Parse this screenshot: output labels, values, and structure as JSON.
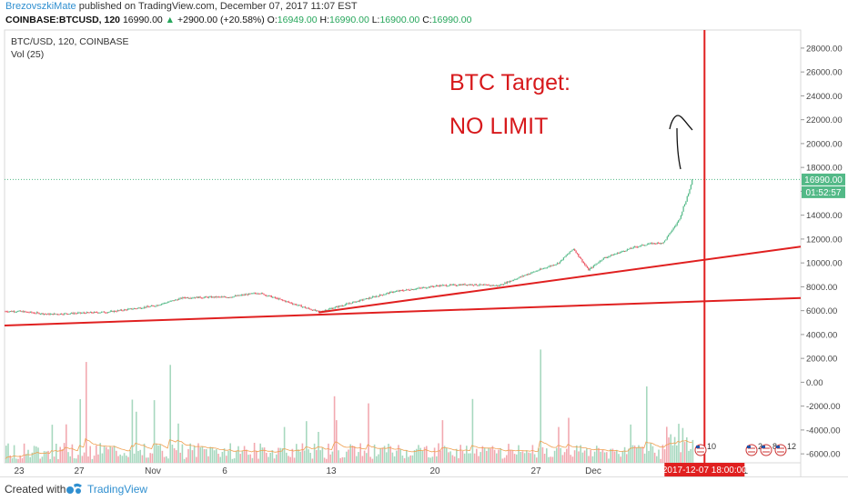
{
  "header": {
    "author": "BrezovszkiMate",
    "published": "published on TradingView.com, December 07, 2017 11:07 EST",
    "symbol": "COINBASE:BTCUSD, 120",
    "last": "16990.00",
    "change": "+2900.00 (+20.58%)",
    "o_label": "O:",
    "o": "16949.00",
    "h_label": "H:",
    "h": "16990.00",
    "l_label": "L:",
    "l": "16900.00",
    "c_label": "C:",
    "c": "16990.00"
  },
  "chart_data": {
    "type": "candlestick",
    "legend_symbol": "BTC/USD, 120, COINBASE",
    "legend_volume": "Vol (25)",
    "y_ticks": [
      28000,
      26000,
      24000,
      22000,
      20000,
      18000,
      16000,
      14000,
      12000,
      10000,
      8000,
      6000,
      4000,
      2000,
      0,
      -2000,
      -4000,
      -6000
    ],
    "y_tick_labels": [
      "28000.00",
      "26000.00",
      "24000.00",
      "22000.00",
      "20000.00",
      "18000.00",
      "16000.00",
      "14000.00",
      "12000.00",
      "10000.00",
      "8000.00",
      "6000.00",
      "4000.00",
      "2000.00",
      "0.00",
      "-2000.00",
      "-4000.00",
      "-6000.00"
    ],
    "x_tick_labels": [
      "23",
      "27",
      "Nov",
      "6",
      "13",
      "20",
      "27",
      "Dec",
      "11"
    ],
    "price_path": [
      [
        "2017-10-23",
        5950
      ],
      [
        "2017-10-25",
        5700
      ],
      [
        "2017-10-27",
        5800
      ],
      [
        "2017-10-29",
        5900
      ],
      [
        "2017-11-01",
        6400
      ],
      [
        "2017-11-03",
        7100
      ],
      [
        "2017-11-06",
        7150
      ],
      [
        "2017-11-08",
        7500
      ],
      [
        "2017-11-10",
        6700
      ],
      [
        "2017-11-12",
        5900
      ],
      [
        "2017-11-14",
        6600
      ],
      [
        "2017-11-17",
        7600
      ],
      [
        "2017-11-20",
        8100
      ],
      [
        "2017-11-22",
        8200
      ],
      [
        "2017-11-24",
        8100
      ],
      [
        "2017-11-26",
        9100
      ],
      [
        "2017-11-28",
        10000
      ],
      [
        "2017-11-29",
        11200
      ],
      [
        "2017-11-30",
        9400
      ],
      [
        "2017-12-01",
        10400
      ],
      [
        "2017-12-03",
        11300
      ],
      [
        "2017-12-04",
        11600
      ],
      [
        "2017-12-05",
        11700
      ],
      [
        "2017-12-06",
        13500
      ],
      [
        "2017-12-07",
        16990
      ]
    ],
    "last_price_label": "16990.00",
    "countdown_label": "01:52:57",
    "crosshair_label": "2017-12-07 18:00:00",
    "trendlines": [
      {
        "from": [
          "2017-10-23",
          4800
        ],
        "to": [
          "2017-12-15",
          7100
        ]
      },
      {
        "from": [
          "2017-11-12",
          5850
        ],
        "to": [
          "2017-12-15",
          11500
        ]
      }
    ],
    "event_markers": [
      "10",
      "2",
      "8",
      "12"
    ],
    "colors": {
      "up": "#53b987",
      "down": "#eb4d5c",
      "trend": "#e02020",
      "crosshair": "#e02020",
      "last": "#53b987"
    }
  },
  "annotations": {
    "title": "BTC Target:",
    "subtitle": "NO LIMIT"
  },
  "footer": {
    "created_with": "Created with",
    "brand": "TradingView"
  }
}
